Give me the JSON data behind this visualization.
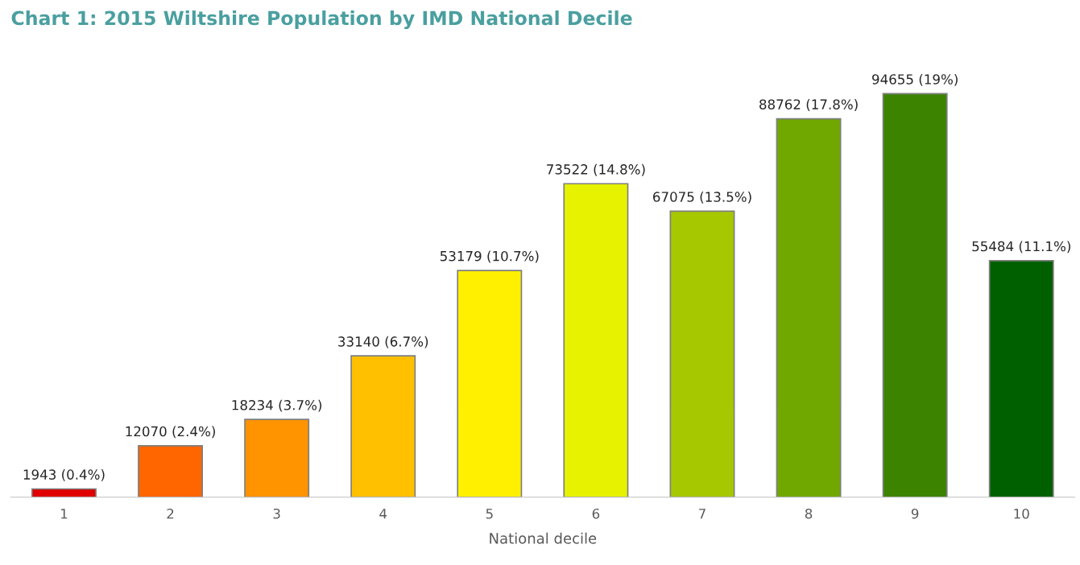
{
  "chart_data": {
    "type": "bar",
    "title": "Chart 1: 2015 Wiltshire Population by IMD National Decile",
    "xlabel": "National decile",
    "categories": [
      "1",
      "2",
      "3",
      "4",
      "5",
      "6",
      "7",
      "8",
      "9",
      "10"
    ],
    "values": [
      1943,
      12070,
      18234,
      33140,
      53179,
      73522,
      67075,
      88762,
      94655,
      55484
    ],
    "value_labels": [
      "1943 (0.4%)",
      "12070 (2.4%)",
      "18234 (3.7%)",
      "33140 (6.7%)",
      "53179 (10.7%)",
      "73522 (14.8%)",
      "67075 (13.5%)",
      "88762 (17.8%)",
      "94655 (19%)",
      "55484 (11.1%)"
    ],
    "colors": [
      "#e00000",
      "#ff6600",
      "#ff9300",
      "#ffc000",
      "#fff000",
      "#e6f200",
      "#a6c800",
      "#70a800",
      "#3c8400",
      "#006000"
    ],
    "tick_labels": "x",
    "grid": false
  }
}
